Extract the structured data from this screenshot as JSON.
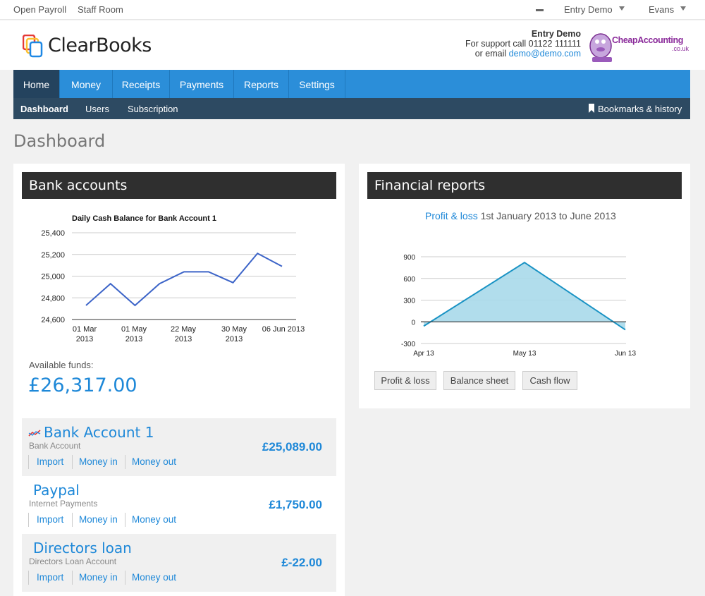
{
  "topbar": {
    "open_payroll": "Open Payroll",
    "staff_room": "Staff Room",
    "company": "Entry Demo",
    "user": "Evans"
  },
  "header": {
    "logo_text": "ClearBooks",
    "support_company": "Entry Demo",
    "support_phone": "For support call 01122 111111",
    "support_email_prefix": "or email",
    "support_email": "demo@demo.com",
    "partner_name": "CheapAccounting",
    "partner_domain": ".co.uk"
  },
  "nav": {
    "items": [
      "Home",
      "Money",
      "Receipts",
      "Payments",
      "Reports",
      "Settings"
    ],
    "active": "Home"
  },
  "subnav": {
    "items": [
      "Dashboard",
      "Users",
      "Subscription"
    ],
    "bookmarks": "Bookmarks & history"
  },
  "page": {
    "title": "Dashboard"
  },
  "bank": {
    "heading": "Bank accounts",
    "available_label": "Available funds:",
    "available_value": "£26,317.00",
    "accounts": [
      {
        "name": "Bank Account 1",
        "type": "Bank Account",
        "amount": "£25,089.00",
        "links": [
          "Import",
          "Money in",
          "Money out"
        ]
      },
      {
        "name": "Paypal",
        "type": "Internet Payments",
        "amount": "£1,750.00",
        "links": [
          "Import",
          "Money in",
          "Money out"
        ]
      },
      {
        "name": "Directors loan",
        "type": "Directors Loan Account",
        "amount": "£-22.00",
        "links": [
          "Import",
          "Money in",
          "Money out"
        ]
      }
    ]
  },
  "financial": {
    "heading": "Financial reports",
    "subtitle_link": "Profit & loss",
    "subtitle_rest": "1st January 2013 to June 2013",
    "buttons": [
      "Profit & loss",
      "Balance sheet",
      "Cash flow"
    ]
  },
  "colors": {
    "accent": "#1e88d8",
    "nav": "#2b8ed9",
    "nav_active": "#24435e",
    "subnav": "#2d4a62",
    "line": "#3c64c8",
    "area": "#a9d9ea"
  },
  "chart_data": [
    {
      "type": "line",
      "title": "Daily Cash Balance for  Bank Account 1",
      "xlabel": "",
      "ylabel": "",
      "x_ticks": [
        "01 Mar 2013",
        "01 May 2013",
        "22 May 2013",
        "30 May 2013",
        "06 Jun 2013"
      ],
      "y_ticks": [
        "25,400",
        "25,200",
        "25,000",
        "24,800",
        "24,600"
      ],
      "ylim": [
        24600,
        25400
      ],
      "grid": true,
      "series": [
        {
          "values": [
            24730,
            24930,
            24730,
            24930,
            25040,
            25040,
            24940,
            25210,
            25090
          ]
        }
      ]
    },
    {
      "type": "area",
      "title": "",
      "xlabel": "",
      "ylabel": "",
      "x_ticks": [
        "Apr 13",
        "May 13",
        "Jun 13"
      ],
      "y_ticks": [
        "900",
        "600",
        "300",
        "0",
        "-300"
      ],
      "ylim": [
        -300,
        900
      ],
      "grid": true,
      "series": [
        {
          "x": [
            "Apr 13",
            "May 13",
            "Jun 13"
          ],
          "values": [
            -60,
            820,
            -110
          ]
        }
      ]
    }
  ]
}
